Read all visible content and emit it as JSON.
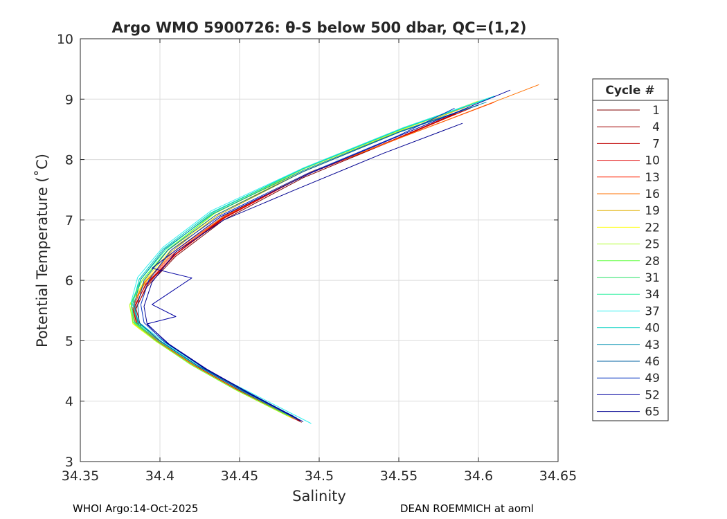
{
  "chart_data": {
    "type": "line",
    "title": "Argo WMO 5900726: θ-S below 500 dbar,  QC=(1,2)",
    "xlabel": "Salinity",
    "ylabel": "Potential Temperature (˚C)",
    "xlim": [
      34.35,
      34.65
    ],
    "ylim": [
      3,
      10
    ],
    "xticks": [
      "34.35",
      "34.4",
      "34.45",
      "34.5",
      "34.55",
      "34.6",
      "34.65"
    ],
    "yticks": [
      "3",
      "4",
      "5",
      "6",
      "7",
      "8",
      "9",
      "10"
    ],
    "grid": true,
    "legend": {
      "title": "Cycle #",
      "position": "right"
    },
    "series": [
      {
        "name": "1",
        "color": "#800000",
        "x": [
          34.489,
          34.455,
          34.427,
          34.403,
          34.387,
          34.384,
          34.392,
          34.41,
          34.44,
          34.49,
          34.545,
          34.585
        ],
        "y": [
          3.65,
          4.1,
          4.5,
          4.9,
          5.2,
          5.5,
          5.9,
          6.4,
          7.0,
          7.7,
          8.3,
          8.75
        ]
      },
      {
        "name": "4",
        "color": "#a00000",
        "x": [
          34.488,
          34.454,
          34.425,
          34.402,
          34.386,
          34.383,
          34.391,
          34.409,
          34.439,
          34.489,
          34.546,
          34.586
        ],
        "y": [
          3.67,
          4.12,
          4.52,
          4.92,
          5.22,
          5.52,
          5.92,
          6.42,
          7.02,
          7.72,
          8.32,
          8.77
        ]
      },
      {
        "name": "7",
        "color": "#c00000",
        "x": [
          34.487,
          34.453,
          34.426,
          34.403,
          34.388,
          34.385,
          34.392,
          34.41,
          34.44,
          34.49,
          34.548,
          34.59
        ],
        "y": [
          3.68,
          4.13,
          4.53,
          4.93,
          5.23,
          5.53,
          5.93,
          6.43,
          7.03,
          7.73,
          8.33,
          8.8
        ]
      },
      {
        "name": "10",
        "color": "#e00000",
        "x": [
          34.486,
          34.452,
          34.425,
          34.402,
          34.387,
          34.384,
          34.391,
          34.41,
          34.441,
          34.491,
          34.55,
          34.595
        ],
        "y": [
          3.69,
          4.14,
          4.54,
          4.94,
          5.24,
          5.54,
          5.94,
          6.44,
          7.04,
          7.74,
          8.36,
          8.85
        ]
      },
      {
        "name": "13",
        "color": "#ff2000",
        "x": [
          34.485,
          34.451,
          34.424,
          34.401,
          34.386,
          34.383,
          34.39,
          34.409,
          34.44,
          34.492,
          34.555,
          34.61
        ],
        "y": [
          3.7,
          4.15,
          4.55,
          4.95,
          5.25,
          5.55,
          5.95,
          6.45,
          7.05,
          7.76,
          8.4,
          8.95
        ]
      },
      {
        "name": "16",
        "color": "#ff7000",
        "x": [
          34.484,
          34.45,
          34.423,
          34.4,
          34.385,
          34.382,
          34.39,
          34.408,
          34.44,
          34.495,
          34.565,
          34.638
        ],
        "y": [
          3.71,
          4.16,
          4.56,
          4.96,
          5.26,
          5.56,
          5.96,
          6.46,
          7.06,
          7.8,
          8.5,
          9.24
        ]
      },
      {
        "name": "19",
        "color": "#e0b000",
        "x": [
          34.483,
          34.449,
          34.422,
          34.399,
          34.384,
          34.382,
          34.391,
          34.407,
          34.436,
          34.49,
          34.55,
          34.6
        ],
        "y": [
          3.72,
          4.17,
          4.57,
          4.97,
          5.27,
          5.57,
          5.97,
          6.47,
          7.07,
          7.8,
          8.45,
          8.95
        ]
      },
      {
        "name": "22",
        "color": "#ffff00",
        "x": [
          34.482,
          34.448,
          34.421,
          34.398,
          34.383,
          34.381,
          34.39,
          34.406,
          34.435,
          34.49,
          34.55,
          34.6
        ],
        "y": [
          3.73,
          4.18,
          4.58,
          4.98,
          5.28,
          5.58,
          5.98,
          6.48,
          7.08,
          7.82,
          8.47,
          8.97
        ]
      },
      {
        "name": "25",
        "color": "#b0ff30",
        "x": [
          34.481,
          34.447,
          34.42,
          34.397,
          34.383,
          34.381,
          34.389,
          34.405,
          34.434,
          34.49,
          34.552,
          34.605
        ],
        "y": [
          3.75,
          4.2,
          4.6,
          5.0,
          5.3,
          5.6,
          6.0,
          6.5,
          7.1,
          7.84,
          8.5,
          9.0
        ]
      },
      {
        "name": "28",
        "color": "#60ff40",
        "x": [
          34.48,
          34.446,
          34.419,
          34.397,
          34.383,
          34.382,
          34.389,
          34.405,
          34.434,
          34.49,
          34.553,
          34.608
        ],
        "y": [
          3.76,
          4.21,
          4.61,
          5.01,
          5.31,
          5.61,
          6.01,
          6.51,
          7.11,
          7.85,
          8.52,
          9.03
        ]
      },
      {
        "name": "31",
        "color": "#20e060",
        "x": [
          34.482,
          34.448,
          34.421,
          34.398,
          34.384,
          34.382,
          34.388,
          34.404,
          34.433,
          34.49,
          34.553,
          34.61
        ],
        "y": [
          3.77,
          4.22,
          4.62,
          5.02,
          5.32,
          5.62,
          6.02,
          6.52,
          7.12,
          7.86,
          8.53,
          9.05
        ]
      },
      {
        "name": "34",
        "color": "#30f0a0",
        "x": [
          34.484,
          34.45,
          34.422,
          34.399,
          34.384,
          34.382,
          34.388,
          34.404,
          34.433,
          34.49,
          34.553,
          34.61
        ],
        "y": [
          3.74,
          4.2,
          4.6,
          5.0,
          5.3,
          5.6,
          6.02,
          6.52,
          7.12,
          7.86,
          8.53,
          9.05
        ]
      },
      {
        "name": "37",
        "color": "#30f0f0",
        "x": [
          34.495,
          34.46,
          34.43,
          34.404,
          34.387,
          34.382,
          34.386,
          34.402,
          34.432,
          34.49,
          34.553,
          34.61
        ],
        "y": [
          3.63,
          4.1,
          4.5,
          4.95,
          5.3,
          5.65,
          6.05,
          6.55,
          7.15,
          7.86,
          8.53,
          9.05
        ]
      },
      {
        "name": "40",
        "color": "#00d0c0",
        "x": [
          34.486,
          34.452,
          34.425,
          34.401,
          34.386,
          34.383,
          34.387,
          34.402,
          34.432,
          34.49,
          34.553,
          34.61
        ],
        "y": [
          3.7,
          4.16,
          4.56,
          4.98,
          5.3,
          5.62,
          6.02,
          6.52,
          7.12,
          7.85,
          8.52,
          9.04
        ]
      },
      {
        "name": "43",
        "color": "#0090b0",
        "x": [
          34.485,
          34.451,
          34.424,
          34.4,
          34.386,
          34.384,
          34.388,
          34.403,
          34.433,
          34.49,
          34.552,
          34.605
        ],
        "y": [
          3.72,
          4.18,
          4.58,
          5.0,
          5.32,
          5.62,
          6.02,
          6.52,
          7.1,
          7.82,
          8.48,
          8.95
        ]
      },
      {
        "name": "46",
        "color": "#0060a0",
        "x": [
          34.484,
          34.45,
          34.423,
          34.4,
          34.387,
          34.386,
          34.39,
          34.405,
          34.435,
          34.49,
          34.55,
          34.6
        ],
        "y": [
          3.75,
          4.2,
          4.6,
          5.0,
          5.3,
          5.6,
          6.0,
          6.5,
          7.08,
          7.8,
          8.45,
          8.9
        ]
      },
      {
        "name": "49",
        "color": "#0030c0",
        "x": [
          34.486,
          34.453,
          34.426,
          34.403,
          34.39,
          34.388,
          34.393,
          34.407,
          34.437,
          34.492,
          34.55,
          34.585
        ],
        "y": [
          3.72,
          4.18,
          4.58,
          4.98,
          5.3,
          5.6,
          6.0,
          6.5,
          7.06,
          7.76,
          8.4,
          8.85
        ]
      },
      {
        "name": "52",
        "color": "#0000a0",
        "x": [
          34.488,
          34.455,
          34.428,
          34.405,
          34.392,
          34.41,
          34.395,
          34.42,
          34.395,
          34.41,
          34.438,
          34.495,
          34.56,
          34.62
        ],
        "y": [
          3.68,
          4.14,
          4.54,
          4.95,
          5.28,
          5.4,
          5.6,
          6.04,
          6.2,
          6.5,
          7.05,
          7.78,
          8.5,
          9.15
        ]
      },
      {
        "name": "65",
        "color": "#000090",
        "x": [
          34.49,
          34.457,
          34.43,
          34.406,
          34.392,
          34.39,
          34.395,
          34.41,
          34.44,
          34.485,
          34.54,
          34.59
        ],
        "y": [
          3.66,
          4.12,
          4.52,
          4.94,
          5.27,
          5.57,
          5.97,
          6.47,
          7.0,
          7.5,
          8.1,
          8.6
        ]
      }
    ]
  },
  "footer": {
    "left": "WHOI Argo:14-Oct-2025",
    "right": "DEAN ROEMMICH at aoml"
  }
}
